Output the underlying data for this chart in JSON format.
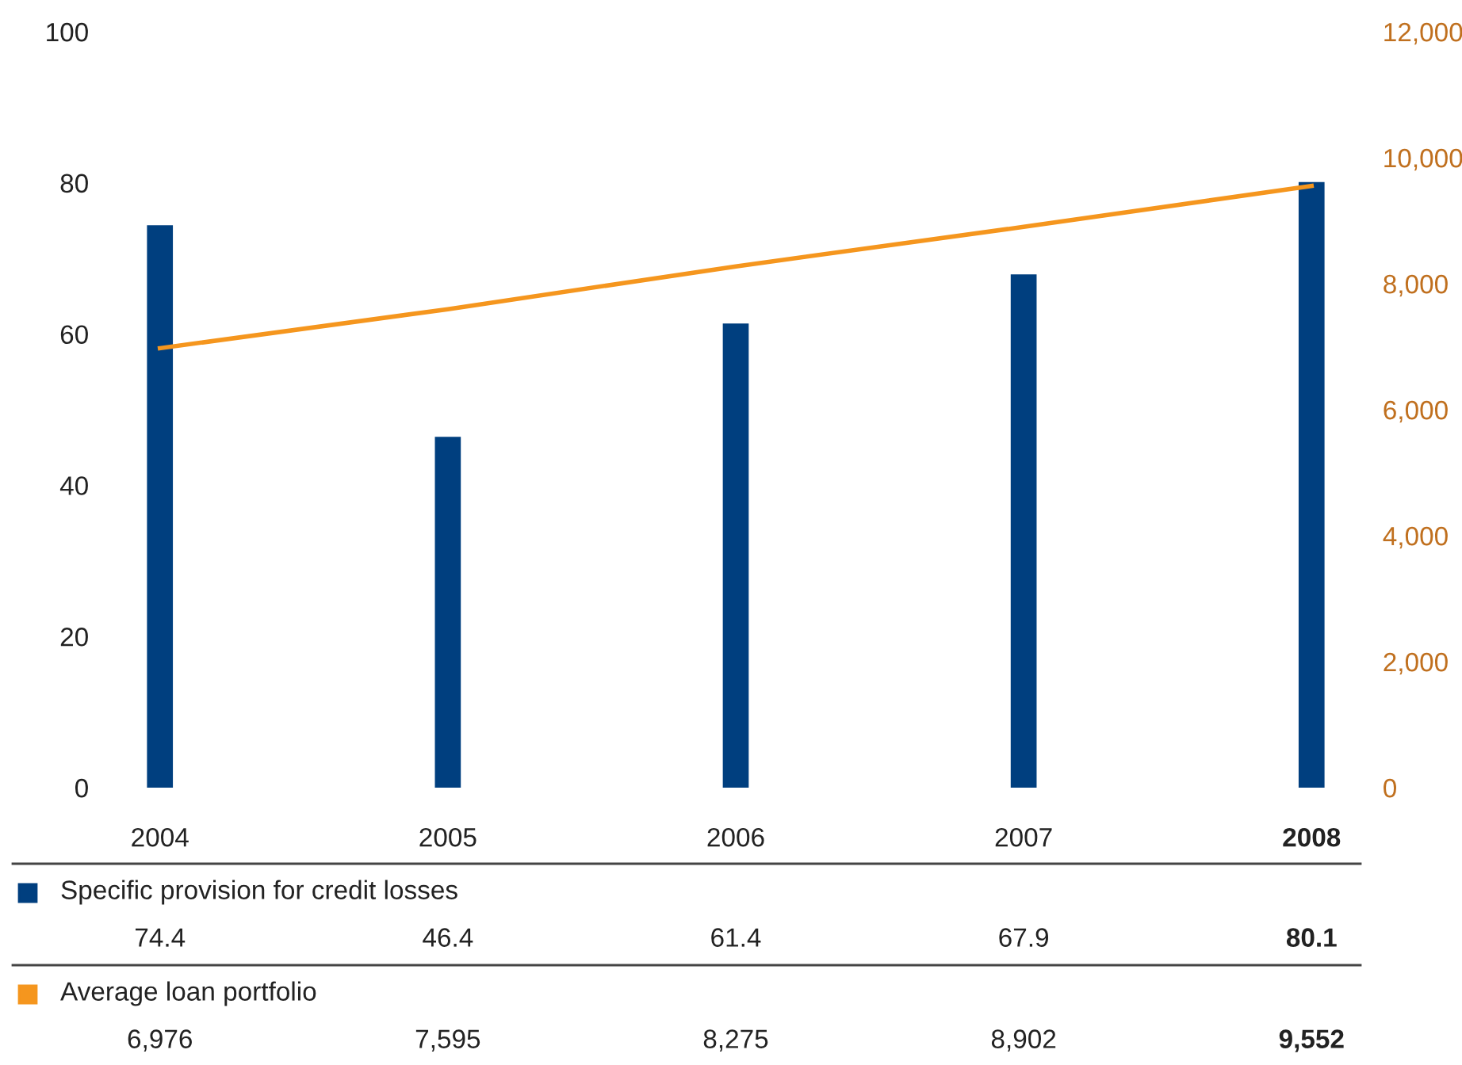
{
  "chart_data": {
    "type": "bar",
    "categories": [
      "2004",
      "2005",
      "2006",
      "2007",
      "2008"
    ],
    "series": [
      {
        "name": "Specific provision for credit losses",
        "color": "#003f7f",
        "values": [
          74.4,
          46.4,
          61.4,
          67.9,
          80.1
        ],
        "value_labels": [
          "74.4",
          "46.4",
          "61.4",
          "67.9",
          "80.1"
        ]
      },
      {
        "name": "Average loan portfolio",
        "type": "line",
        "axis": "y2",
        "color": "#f5961e",
        "values": [
          6976,
          7595,
          8275,
          8902,
          9552
        ],
        "value_labels": [
          "6,976",
          "7,595",
          "8,275",
          "8,902",
          "9,552"
        ]
      }
    ],
    "ylim": [
      0,
      100
    ],
    "yticks": [
      0,
      20,
      40,
      60,
      80,
      100
    ],
    "y2lim": [
      0,
      12000
    ],
    "y2ticks": [
      0,
      {
        "value": 2000,
        "label": "2,000"
      },
      {
        "value": 4000,
        "label": "4,000"
      },
      {
        "value": 6000,
        "label": "6,000"
      },
      {
        "value": 8000,
        "label": "8,000"
      },
      {
        "value": 10000,
        "label": "10,000"
      },
      {
        "value": 12000,
        "label": "12,000"
      }
    ],
    "legend": "bottom",
    "grid": false,
    "marker": "none",
    "line_style": "solid"
  }
}
